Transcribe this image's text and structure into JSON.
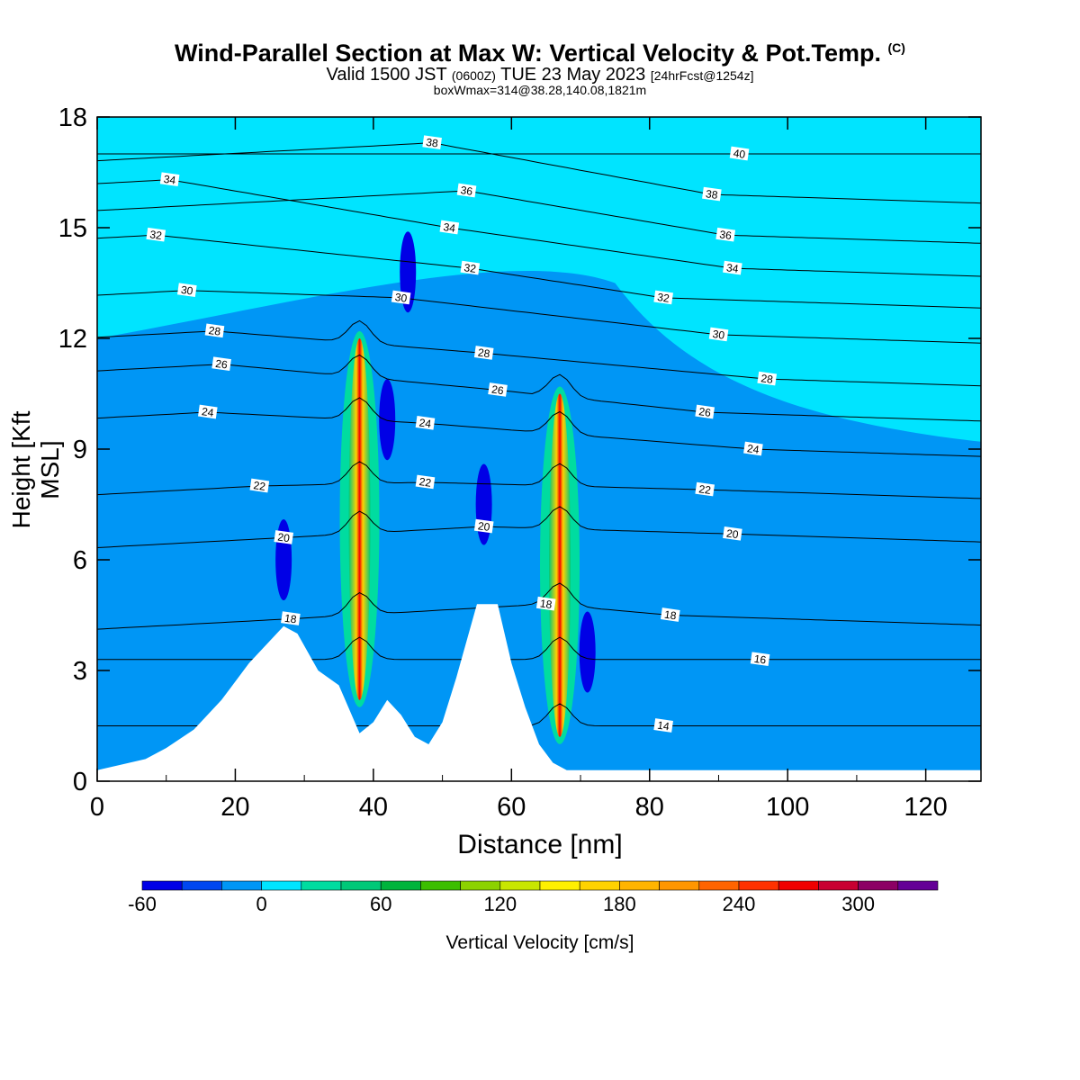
{
  "title": {
    "main": "Wind-Parallel Section at Max W: Vertical Velocity & Pot.Temp.",
    "copyright": "(C)",
    "valid_prefix": "Valid 1500 JST",
    "valid_utc": "(0600Z)",
    "valid_date": "TUE 23 May 2023",
    "forecast": "[24hrFcst@1254z]",
    "subtitle": "boxWmax=314@38.28,140.08,1821m"
  },
  "chart_data": {
    "type": "heatmap",
    "xlabel": "Distance [nm]",
    "ylabel": "Height [Kft MSL]",
    "xlim": [
      0,
      128
    ],
    "ylim": [
      0,
      18
    ],
    "x_ticks": [
      0,
      20,
      40,
      60,
      80,
      100,
      120
    ],
    "y_ticks": [
      0,
      3,
      6,
      9,
      12,
      15,
      18
    ],
    "background_field": {
      "name": "Vertical Velocity",
      "value_cm_s": 0,
      "color": "#00e4ff"
    },
    "updraft_cores": [
      {
        "x": 38,
        "y_bottom": 2.2,
        "y_top": 12.0,
        "max_w_cm_s": 314
      },
      {
        "x": 67,
        "y_bottom": 1.2,
        "y_top": 10.5,
        "max_w_cm_s": 240
      }
    ],
    "downdraft_regions": [
      {
        "x": 27,
        "y": 6.0,
        "min_w_cm_s": -60
      },
      {
        "x": 42,
        "y": 9.8,
        "min_w_cm_s": -50
      },
      {
        "x": 45,
        "y": 13.8,
        "min_w_cm_s": -50
      },
      {
        "x": 56,
        "y": 7.5,
        "min_w_cm_s": -50
      },
      {
        "x": 71,
        "y": 3.5,
        "min_w_cm_s": -50
      }
    ],
    "terrain_profile": {
      "x": [
        0,
        7,
        10,
        14,
        18,
        22,
        27,
        29,
        32,
        35,
        38,
        40,
        42,
        44,
        46,
        48,
        50,
        52,
        55,
        58,
        60,
        62,
        64,
        66,
        68,
        70,
        128
      ],
      "y": [
        0.3,
        0.6,
        0.9,
        1.4,
        2.2,
        3.2,
        4.2,
        4.0,
        3.0,
        2.6,
        1.3,
        1.6,
        2.2,
        1.8,
        1.2,
        1.0,
        1.6,
        2.8,
        4.8,
        4.8,
        3.2,
        2.0,
        1.0,
        0.5,
        0.3,
        0.3,
        0.3
      ]
    },
    "isentropes": {
      "name": "Pot.Temp.",
      "labeled_values": [
        14,
        16,
        18,
        20,
        22,
        24,
        26,
        28,
        30,
        32,
        34,
        36,
        38,
        40
      ],
      "labels": [
        {
          "text": "38",
          "x": 48.5,
          "y": 17.3
        },
        {
          "text": "40",
          "x": 93,
          "y": 17.0
        },
        {
          "text": "34",
          "x": 10.5,
          "y": 16.3
        },
        {
          "text": "36",
          "x": 53.5,
          "y": 16.0
        },
        {
          "text": "38",
          "x": 89,
          "y": 15.9
        },
        {
          "text": "34",
          "x": 51,
          "y": 15.0
        },
        {
          "text": "36",
          "x": 91,
          "y": 14.8
        },
        {
          "text": "32",
          "x": 8.5,
          "y": 14.8
        },
        {
          "text": "34",
          "x": 92,
          "y": 13.9
        },
        {
          "text": "32",
          "x": 54,
          "y": 13.9
        },
        {
          "text": "30",
          "x": 13,
          "y": 13.3
        },
        {
          "text": "30",
          "x": 44,
          "y": 13.1
        },
        {
          "text": "32",
          "x": 82,
          "y": 13.1
        },
        {
          "text": "28",
          "x": 17,
          "y": 12.2
        },
        {
          "text": "30",
          "x": 90,
          "y": 12.1
        },
        {
          "text": "28",
          "x": 56,
          "y": 11.6
        },
        {
          "text": "26",
          "x": 18,
          "y": 11.3
        },
        {
          "text": "28",
          "x": 97,
          "y": 10.9
        },
        {
          "text": "26",
          "x": 58,
          "y": 10.6
        },
        {
          "text": "24",
          "x": 16,
          "y": 10.0
        },
        {
          "text": "26",
          "x": 88,
          "y": 10.0
        },
        {
          "text": "24",
          "x": 47.5,
          "y": 9.7
        },
        {
          "text": "24",
          "x": 95,
          "y": 9.0
        },
        {
          "text": "22",
          "x": 23.5,
          "y": 8.0
        },
        {
          "text": "22",
          "x": 47.5,
          "y": 8.1
        },
        {
          "text": "22",
          "x": 88,
          "y": 7.9
        },
        {
          "text": "20",
          "x": 27,
          "y": 6.6
        },
        {
          "text": "20",
          "x": 56,
          "y": 6.9
        },
        {
          "text": "20",
          "x": 92,
          "y": 6.7
        },
        {
          "text": "18",
          "x": 65,
          "y": 4.8
        },
        {
          "text": "18",
          "x": 83,
          "y": 4.5
        },
        {
          "text": "18",
          "x": 28,
          "y": 4.4
        },
        {
          "text": "16",
          "x": 96,
          "y": 3.3
        },
        {
          "text": "14",
          "x": 82,
          "y": 1.5
        }
      ]
    },
    "colorbar": {
      "label": "Vertical Velocity [cm/s]",
      "tick_values": [
        -60,
        0,
        60,
        120,
        180,
        240,
        300
      ],
      "range": [
        -60,
        340
      ],
      "step": 20,
      "colors": [
        "#0000e6",
        "#0047f0",
        "#0096f5",
        "#00e4ff",
        "#00dca0",
        "#00c878",
        "#00b43c",
        "#3cbe00",
        "#8cd200",
        "#c8e600",
        "#fff000",
        "#ffd200",
        "#ffb400",
        "#ff9600",
        "#ff6400",
        "#ff3200",
        "#f00000",
        "#c80032",
        "#8c0064",
        "#640096"
      ]
    }
  }
}
